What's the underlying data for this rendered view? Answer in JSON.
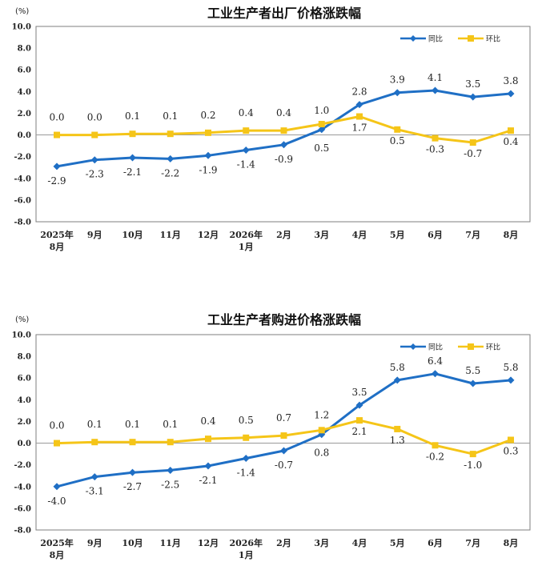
{
  "chart_data": [
    {
      "type": "line",
      "title": "工业生产者出厂价格涨跌幅",
      "unit": "(%)",
      "categories": [
        [
          "2025年",
          "8月"
        ],
        [
          "9月"
        ],
        [
          "10月"
        ],
        [
          "11月"
        ],
        [
          "12月"
        ],
        [
          "2026年",
          "1月"
        ],
        [
          "2月"
        ],
        [
          "3月"
        ],
        [
          "4月"
        ],
        [
          "5月"
        ],
        [
          "6月"
        ],
        [
          "7月"
        ],
        [
          "8月"
        ]
      ],
      "ylim": [
        -8.0,
        10.0
      ],
      "yticks": [
        "10.0",
        "8.0",
        "6.0",
        "4.0",
        "2.0",
        "0.0",
        "-2.0",
        "-4.0",
        "-6.0",
        "-8.0"
      ],
      "grid": false,
      "legend_position": "top-right",
      "series": [
        {
          "name": "同比",
          "color": "#1f6fc5",
          "values": [
            -2.9,
            -2.3,
            -2.1,
            -2.2,
            -1.9,
            -1.4,
            -0.9,
            0.5,
            2.8,
            3.9,
            4.1,
            3.5,
            3.8
          ],
          "labels": [
            "-2.9",
            "-2.3",
            "-2.1",
            "-2.2",
            "-1.9",
            "-1.4",
            "-0.9",
            "0.5",
            "2.8",
            "3.9",
            "4.1",
            "3.5",
            "3.8"
          ]
        },
        {
          "name": "环比",
          "color": "#f5c518",
          "values": [
            0.0,
            0.0,
            0.1,
            0.1,
            0.2,
            0.4,
            0.4,
            1.0,
            1.7,
            0.5,
            -0.3,
            -0.7,
            0.4
          ],
          "labels": [
            "0.0",
            "0.0",
            "0.1",
            "0.1",
            "0.2",
            "0.4",
            "0.4",
            "1.0",
            "1.7",
            "0.5",
            "-0.3",
            "-0.7",
            "0.4"
          ]
        }
      ]
    },
    {
      "type": "line",
      "title": "工业生产者购进价格涨跌幅",
      "unit": "(%)",
      "categories": [
        [
          "2025年",
          "8月"
        ],
        [
          "9月"
        ],
        [
          "10月"
        ],
        [
          "11月"
        ],
        [
          "12月"
        ],
        [
          "2026年",
          "1月"
        ],
        [
          "2月"
        ],
        [
          "3月"
        ],
        [
          "4月"
        ],
        [
          "5月"
        ],
        [
          "6月"
        ],
        [
          "7月"
        ],
        [
          "8月"
        ]
      ],
      "ylim": [
        -8.0,
        10.0
      ],
      "yticks": [
        "10.0",
        "8.0",
        "6.0",
        "4.0",
        "2.0",
        "0.0",
        "-2.0",
        "-4.0",
        "-6.0",
        "-8.0"
      ],
      "grid": false,
      "legend_position": "top-right",
      "series": [
        {
          "name": "同比",
          "color": "#1f6fc5",
          "values": [
            -4.0,
            -3.1,
            -2.7,
            -2.5,
            -2.1,
            -1.4,
            -0.7,
            0.8,
            3.5,
            5.8,
            6.4,
            5.5,
            5.8
          ],
          "labels": [
            "-4.0",
            "-3.1",
            "-2.7",
            "-2.5",
            "-2.1",
            "-1.4",
            "-0.7",
            "0.8",
            "3.5",
            "5.8",
            "6.4",
            "5.5",
            "5.8"
          ]
        },
        {
          "name": "环比",
          "color": "#f5c518",
          "values": [
            0.0,
            0.1,
            0.1,
            0.1,
            0.4,
            0.5,
            0.7,
            1.2,
            2.1,
            1.3,
            -0.2,
            -1.0,
            0.3
          ],
          "labels": [
            "0.0",
            "0.1",
            "0.1",
            "0.1",
            "0.4",
            "0.5",
            "0.7",
            "1.2",
            "2.1",
            "1.3",
            "-0.2",
            "-1.0",
            "0.3"
          ]
        }
      ]
    }
  ]
}
